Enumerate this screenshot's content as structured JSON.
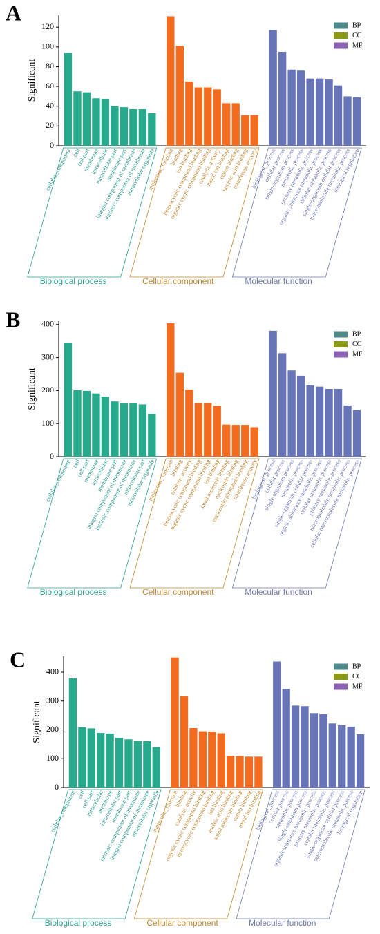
{
  "chart_data": [
    {
      "type": "bar",
      "label": "A",
      "ylabel": "Significant",
      "ylim": [
        0,
        132
      ],
      "yticks": [
        0,
        20,
        40,
        60,
        80,
        100,
        120
      ],
      "legend": [
        {
          "name": "BP",
          "color": "#4e8a87"
        },
        {
          "name": "CC",
          "color": "#8c9a18"
        },
        {
          "name": "MF",
          "color": "#8d62b5"
        }
      ],
      "groups": [
        {
          "name": "Biological process",
          "color": "#27a98b",
          "label_color": "#2a9d8f",
          "categories": [
            "cellular_component",
            "cell",
            "cell part",
            "membrane",
            "intracellular",
            "intracellular part",
            "membrane part",
            "integral component of membrane",
            "intrinsic component of membrane",
            "intracellular organelle"
          ],
          "values": [
            94,
            55,
            54,
            48,
            47,
            40,
            39,
            37,
            37,
            33
          ]
        },
        {
          "name": "Cellular component",
          "color": "#f26b1f",
          "label_color": "#c0872e",
          "categories": [
            "molecular_function",
            "binding",
            "ion binding",
            "heterocyclic compound binding",
            "organic cyclic compound binding",
            "catalytic activity",
            "metal ion binding",
            "cation binding",
            "nucleic acid binding",
            "transferase activity"
          ],
          "values": [
            131,
            101,
            65,
            59,
            59,
            57,
            43,
            43,
            31,
            31
          ]
        },
        {
          "name": "Molecular function",
          "color": "#6874b8",
          "label_color": "#6f78b0",
          "categories": [
            "biological_process",
            "cellular process",
            "single-organism process",
            "metabolic process",
            "primary metabolic process",
            "organic substance metabolic process",
            "cellular metabolic process",
            "single-organism cellular process",
            "macromolecule metabolic process",
            "biological regulation"
          ],
          "values": [
            117,
            95,
            77,
            76,
            68,
            68,
            67,
            61,
            50,
            49
          ]
        }
      ]
    },
    {
      "type": "bar",
      "label": "B",
      "ylabel": "Significant",
      "ylim": [
        0,
        410
      ],
      "yticks": [
        0,
        100,
        200,
        300,
        400
      ],
      "legend": [
        {
          "name": "BP",
          "color": "#4e8a87"
        },
        {
          "name": "CC",
          "color": "#8c9a18"
        },
        {
          "name": "MF",
          "color": "#8d62b5"
        }
      ],
      "groups": [
        {
          "name": "Biological process",
          "color": "#27a98b",
          "label_color": "#2a9d8f",
          "categories": [
            "cellular_component",
            "cell",
            "cell part",
            "membrane",
            "intracellular",
            "membrane part",
            "integral component of membrane",
            "intrinsic component of membrane",
            "intracellular part",
            "intracellular organelle"
          ],
          "values": [
            345,
            201,
            199,
            191,
            182,
            167,
            161,
            161,
            158,
            129
          ]
        },
        {
          "name": "Cellular component",
          "color": "#f26b1f",
          "label_color": "#c0872e",
          "categories": [
            "molecular_function",
            "binding",
            "catalytic activity",
            "heterocyclic compound binding",
            "organic cyclic compound binding",
            "ion binding",
            "small molecule binding",
            "nucleotide binding",
            "nucleoside phosphate binding",
            "transferase activity"
          ],
          "values": [
            404,
            254,
            203,
            162,
            162,
            154,
            97,
            96,
            96,
            89
          ]
        },
        {
          "name": "Molecular function",
          "color": "#6874b8",
          "label_color": "#6f78b0",
          "categories": [
            "biological_process",
            "cellular process",
            "single-organism process",
            "metabolic process",
            "single-organism cellular process",
            "organic substance metabolic process",
            "cellular metabolic process",
            "primary metabolic process",
            "macromolecule metabolic process",
            "cellular macromolecule metabolic process"
          ],
          "values": [
            381,
            313,
            261,
            245,
            216,
            212,
            205,
            205,
            155,
            141
          ]
        }
      ]
    },
    {
      "type": "bar",
      "label": "C",
      "ylabel": "Significant",
      "ylim": [
        0,
        455
      ],
      "yticks": [
        0,
        100,
        200,
        300,
        400
      ],
      "legend": [
        {
          "name": "BP",
          "color": "#4e8a87"
        },
        {
          "name": "CC",
          "color": "#8c9a18"
        },
        {
          "name": "MF",
          "color": "#8d62b5"
        }
      ],
      "groups": [
        {
          "name": "Biological process",
          "color": "#27a98b",
          "label_color": "#2a9d8f",
          "categories": [
            "cellular_component",
            "cell",
            "cell part",
            "intracellular",
            "membrane",
            "intracellular part",
            "membrane part",
            "intrinsic component of membrane",
            "integral component of membrane",
            "intracellular organelle"
          ],
          "values": [
            379,
            209,
            205,
            189,
            187,
            172,
            167,
            162,
            161,
            140
          ]
        },
        {
          "name": "Cellular component",
          "color": "#f26b1f",
          "label_color": "#c0872e",
          "categories": [
            "molecular_function",
            "binding",
            "catalytic activity",
            "organic cyclic compound binding",
            "heterocyclic compound binding",
            "ion binding",
            "nucleic acid binding",
            "small molecule binding",
            "cation binding",
            "metal ion binding"
          ],
          "values": [
            451,
            316,
            206,
            195,
            194,
            188,
            110,
            109,
            107,
            107
          ]
        },
        {
          "name": "Molecular function",
          "color": "#6874b8",
          "label_color": "#6f78b0",
          "categories": [
            "biological_process",
            "cellular process",
            "metabolic process",
            "single-organism process",
            "organic substance metabolic process",
            "primary metabolic process",
            "cellular metabolic process",
            "single-organism cellular process",
            "macromolecule metabolic process",
            "biological regulation"
          ],
          "values": [
            437,
            342,
            284,
            282,
            258,
            254,
            222,
            216,
            211,
            185
          ]
        }
      ]
    }
  ]
}
